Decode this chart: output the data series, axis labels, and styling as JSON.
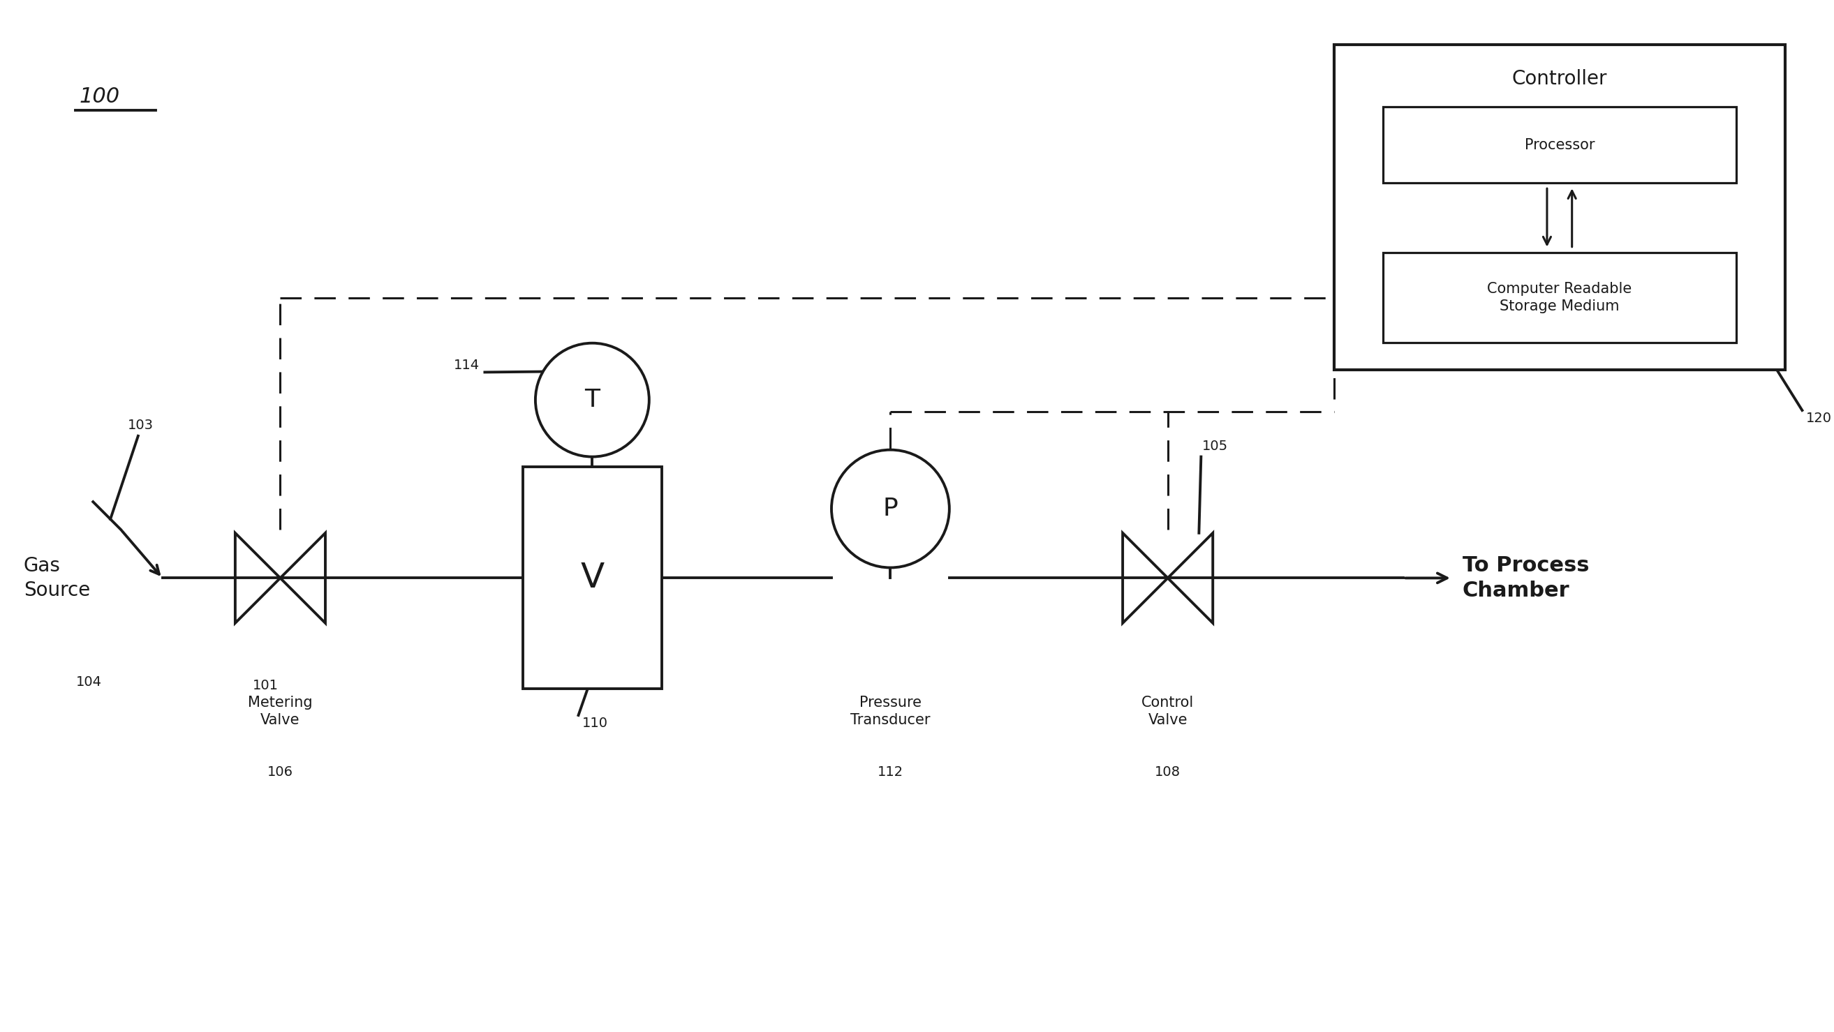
{
  "bg_color": "#ffffff",
  "line_color": "#1a1a1a",
  "fig_width": 26.27,
  "fig_height": 14.79,
  "label_100": "100",
  "label_103": "103",
  "label_104": "104",
  "label_101": "101",
  "label_106": "106",
  "label_110": "110",
  "label_114": "114",
  "label_112": "112",
  "label_108": "108",
  "label_105": "105",
  "label_120": "120",
  "gas_source_text": "Gas\nSource",
  "metering_valve_text": "Metering\nValve",
  "volume_text": "V",
  "temp_text": "T",
  "pressure_text": "P",
  "pressure_transducer_text": "Pressure\nTransducer",
  "control_valve_text": "Control\nValve",
  "to_process_text": "To Process\nChamber",
  "controller_text": "Controller",
  "processor_text": "Processor",
  "storage_text": "Computer Readable\nStorage Medium"
}
